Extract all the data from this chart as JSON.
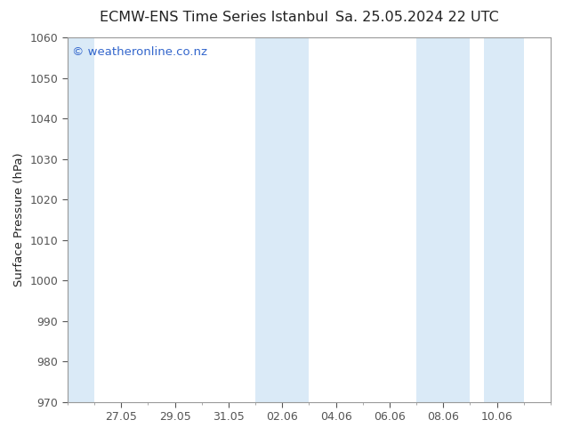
{
  "title_left": "ECMW-ENS Time Series Istanbul",
  "title_right": "Sa. 25.05.2024 22 UTC",
  "ylabel": "Surface Pressure (hPa)",
  "ylim": [
    970,
    1060
  ],
  "yticks": [
    970,
    980,
    990,
    1000,
    1010,
    1020,
    1030,
    1040,
    1050,
    1060
  ],
  "x_tick_labels": [
    "27.05",
    "29.05",
    "31.05",
    "02.06",
    "04.06",
    "06.06",
    "08.06",
    "10.06"
  ],
  "x_tick_positions": [
    2,
    4,
    6,
    8,
    10,
    12,
    14,
    16
  ],
  "xlim": [
    0,
    18
  ],
  "shaded_bands": [
    {
      "x_start": 0.0,
      "x_end": 1.0
    },
    {
      "x_start": 7.0,
      "x_end": 9.0
    },
    {
      "x_start": 13.0,
      "x_end": 15.0
    },
    {
      "x_start": 15.5,
      "x_end": 17.0
    }
  ],
  "band_color": "#daeaf7",
  "background_color": "#ffffff",
  "plot_bg_color": "#ffffff",
  "spine_color": "#999999",
  "tick_color": "#555555",
  "watermark_text": "© weatheronline.co.nz",
  "watermark_color": "#3366cc",
  "title_color": "#222222",
  "title_fontsize": 11.5,
  "ylabel_fontsize": 9.5,
  "tick_fontsize": 9,
  "watermark_fontsize": 9.5
}
